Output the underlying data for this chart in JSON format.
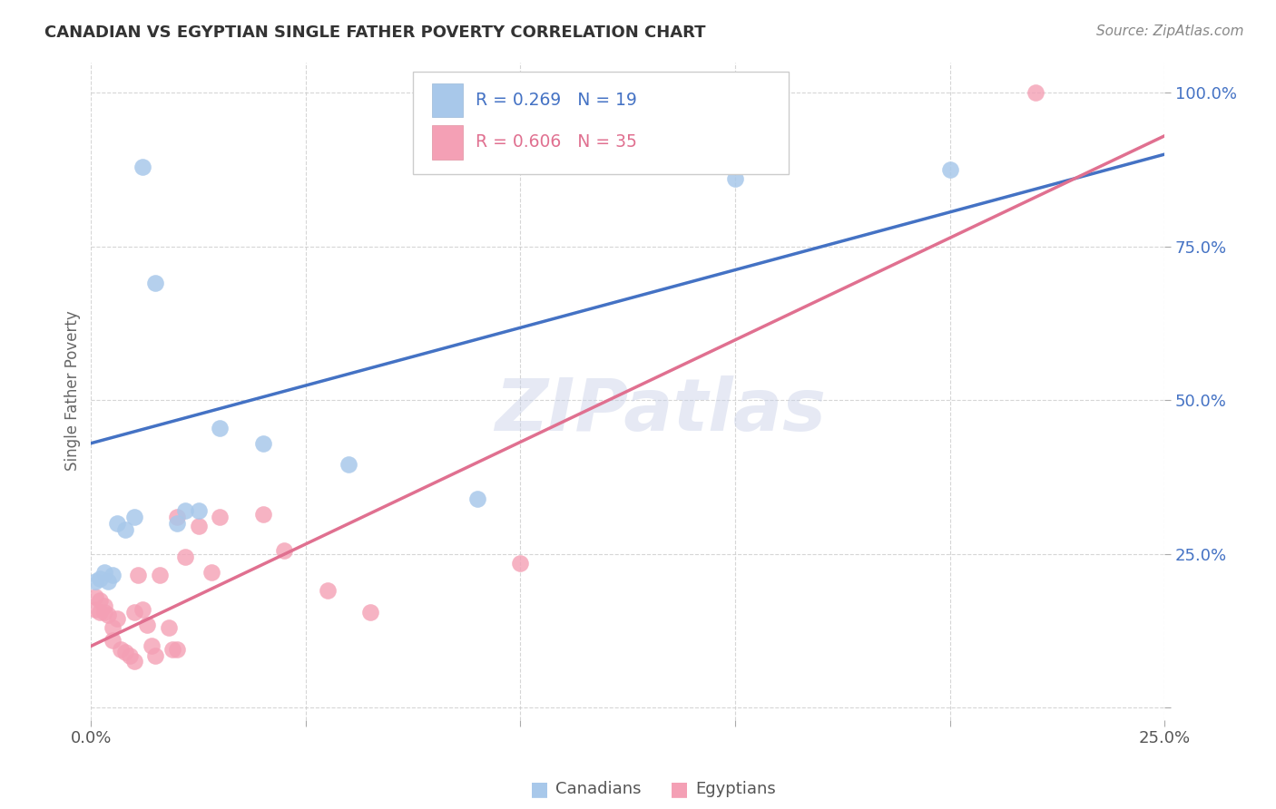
{
  "title": "CANADIAN VS EGYPTIAN SINGLE FATHER POVERTY CORRELATION CHART",
  "source": "Source: ZipAtlas.com",
  "ylabel": "Single Father Poverty",
  "xlim": [
    0.0,
    0.25
  ],
  "ylim": [
    -0.02,
    1.05
  ],
  "canadian_R": 0.269,
  "canadian_N": 19,
  "egyptian_R": 0.606,
  "egyptian_N": 35,
  "canadian_color": "#A8C8EA",
  "egyptian_color": "#F4A0B5",
  "canadian_line_color": "#4472C4",
  "egyptian_line_color": "#E07090",
  "watermark": "ZIPatlas",
  "canadian_x": [
    0.001,
    0.002,
    0.003,
    0.004,
    0.005,
    0.006,
    0.008,
    0.01,
    0.012,
    0.015,
    0.02,
    0.022,
    0.025,
    0.03,
    0.04,
    0.06,
    0.09,
    0.15,
    0.2
  ],
  "canadian_y": [
    0.205,
    0.21,
    0.22,
    0.205,
    0.215,
    0.3,
    0.29,
    0.31,
    0.88,
    0.69,
    0.3,
    0.32,
    0.32,
    0.455,
    0.43,
    0.395,
    0.34,
    0.86,
    0.875
  ],
  "egyptian_x": [
    0.001,
    0.001,
    0.002,
    0.002,
    0.003,
    0.003,
    0.004,
    0.005,
    0.005,
    0.006,
    0.007,
    0.008,
    0.009,
    0.01,
    0.01,
    0.011,
    0.012,
    0.013,
    0.014,
    0.015,
    0.016,
    0.018,
    0.019,
    0.02,
    0.02,
    0.022,
    0.025,
    0.028,
    0.03,
    0.04,
    0.045,
    0.055,
    0.065,
    0.1,
    0.22
  ],
  "egyptian_y": [
    0.16,
    0.18,
    0.155,
    0.175,
    0.155,
    0.165,
    0.15,
    0.11,
    0.13,
    0.145,
    0.095,
    0.09,
    0.085,
    0.075,
    0.155,
    0.215,
    0.16,
    0.135,
    0.1,
    0.085,
    0.215,
    0.13,
    0.095,
    0.095,
    0.31,
    0.245,
    0.295,
    0.22,
    0.31,
    0.315,
    0.255,
    0.19,
    0.155,
    0.235,
    1.0
  ],
  "background_color": "#FFFFFF",
  "grid_color": "#CCCCCC",
  "can_line_x0": 0.0,
  "can_line_y0": 0.43,
  "can_line_x1": 0.25,
  "can_line_y1": 0.9,
  "egy_line_x0": 0.0,
  "egy_line_y0": 0.1,
  "egy_line_x1": 0.25,
  "egy_line_y1": 0.93
}
